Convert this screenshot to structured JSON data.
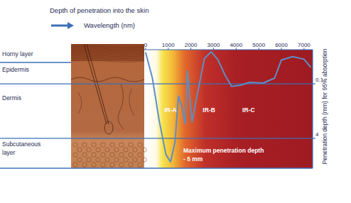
{
  "chart_data": {
    "type": "line",
    "title": "Depth of penetration into the skin",
    "x_label": "Wavelength (nm)",
    "y_label": "Penetration depth (mm) for 95% absorption",
    "x": [
      0,
      300,
      600,
      900,
      1100,
      1300,
      1450,
      1600,
      1750,
      1850,
      2050,
      2300,
      2600,
      2900,
      3200,
      3500,
      3800,
      4200,
      4600,
      5200,
      5700,
      6000,
      6500,
      7000,
      7300
    ],
    "values": [
      0.012,
      0.068,
      1.2,
      12,
      19.5,
      5.1,
      0.23,
      0.46,
      1.5,
      0.042,
      1.33,
      0.18,
      0.018,
      0.0115,
      0.02,
      0.054,
      0.12,
      0.11,
      0.091,
      0.095,
      0.068,
      0.02,
      0.016,
      0.019,
      0.033
    ],
    "color": "#5b8fc7",
    "line_style": "solid",
    "xlim": [
      -60,
      7380
    ],
    "xticks": [
      0,
      1000,
      2000,
      3000,
      4000,
      5000,
      6000,
      7000
    ],
    "ylim": [
      0.01,
      30
    ],
    "yticks": [
      0.1,
      4
    ],
    "log": "y",
    "grid": true,
    "layers": [
      "Horny layer",
      "Epidermis",
      "Dermis",
      "Subcutaneous layer"
    ],
    "regions": [
      {
        "label": "IR-A",
        "x": 1100
      },
      {
        "label": "IR-B",
        "x": 2800
      },
      {
        "label": "IR-C",
        "x": 4550
      }
    ],
    "annotation": [
      "Maximum penetration depth",
      "- 5 mm"
    ]
  }
}
